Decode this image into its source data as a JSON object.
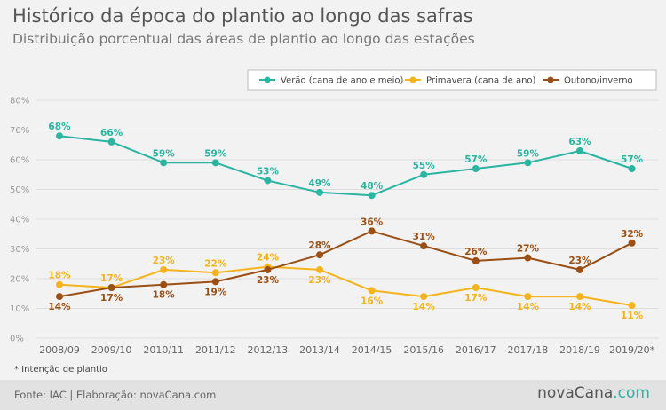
{
  "header": {
    "title": "Histórico da época do plantio ao longo das safras",
    "subtitle": "Distribuição porcentual das áreas de plantio ao longo das estações"
  },
  "footnote": "* Intenção de plantio",
  "footer": {
    "source": "Fonte: IAC | Elaboração: novaCana.com",
    "brand_main": "novaCana",
    "brand_tld": ".com"
  },
  "colors": {
    "verao": "#2ab5a2",
    "primavera": "#f6b31b",
    "outono": "#9b4f14",
    "grid": "#dddddd",
    "axis_text": "#9a9a9a"
  },
  "chart_data": {
    "type": "line",
    "x": [
      "2008/09",
      "2009/10",
      "2010/11",
      "2011/12",
      "2012/13",
      "2013/14",
      "2014/15",
      "2015/16",
      "2016/17",
      "2017/18",
      "2018/19",
      "2019/20*"
    ],
    "ylim": [
      0,
      80
    ],
    "yticks": [
      "0%",
      "10%",
      "20%",
      "30%",
      "40%",
      "50%",
      "60%",
      "70%",
      "80%"
    ],
    "grid": true,
    "legend_position": "top-right",
    "series": [
      {
        "name": "Verão (cana de ano e meio)",
        "color": "#2ab5a2",
        "values": [
          68,
          66,
          59,
          59,
          53,
          49,
          48,
          55,
          57,
          59,
          63,
          57
        ],
        "labels": [
          "68%",
          "66%",
          "59%",
          "59%",
          "53%",
          "49%",
          "48%",
          "55%",
          "57%",
          "59%",
          "63%",
          "57%"
        ],
        "label_side": [
          "above",
          "above",
          "above",
          "above",
          "above",
          "above",
          "above",
          "above",
          "above",
          "above",
          "above",
          "above"
        ]
      },
      {
        "name": "Primavera (cana de ano)",
        "color": "#f6b31b",
        "values": [
          18,
          17,
          23,
          22,
          24,
          23,
          16,
          14,
          17,
          14,
          14,
          11
        ],
        "labels": [
          "18%",
          "17%",
          "23%",
          "22%",
          "24%",
          "23%",
          "16%",
          "14%",
          "17%",
          "14%",
          "14%",
          "11%"
        ],
        "label_side": [
          "above",
          "above",
          "above",
          "above",
          "above",
          "below",
          "below",
          "below",
          "below",
          "below",
          "below",
          "below"
        ]
      },
      {
        "name": "Outono/inverno",
        "color": "#9b4f14",
        "values": [
          14,
          17,
          18,
          19,
          23,
          28,
          36,
          31,
          26,
          27,
          23,
          32
        ],
        "labels": [
          "14%",
          "17%",
          "18%",
          "19%",
          "23%",
          "28%",
          "36%",
          "31%",
          "26%",
          "27%",
          "23%",
          "32%"
        ],
        "label_side": [
          "below",
          "below",
          "below",
          "below",
          "below",
          "above",
          "above",
          "above",
          "above",
          "above",
          "above",
          "above"
        ]
      }
    ]
  }
}
